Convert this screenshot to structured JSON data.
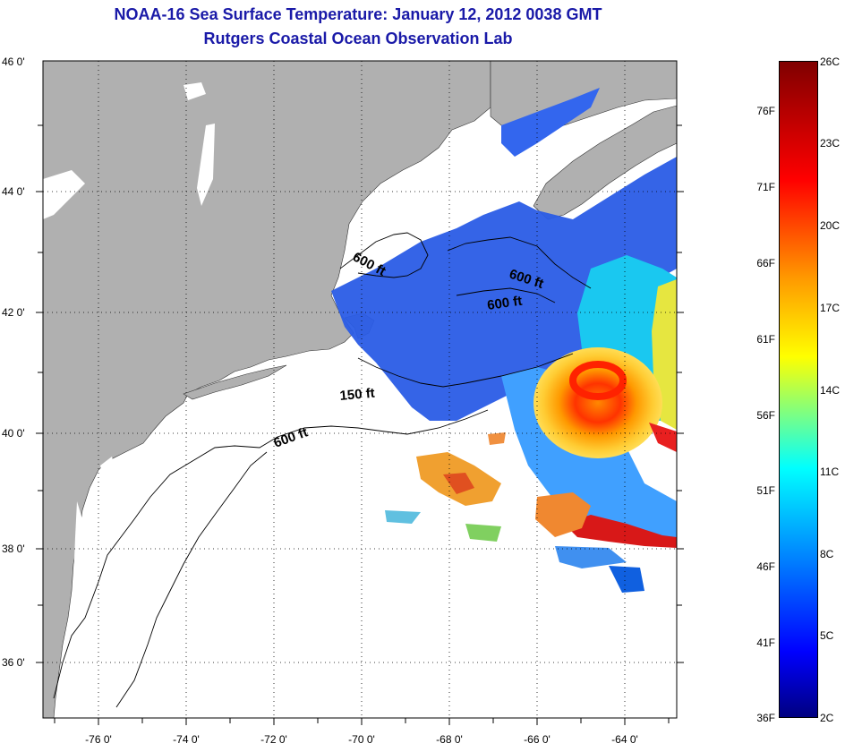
{
  "header": {
    "title": "NOAA-16 Sea Surface Temperature:  January 12, 2012 0038 GMT",
    "subtitle": "Rutgers Coastal Ocean Observation Lab"
  },
  "map": {
    "lat_labels": [
      "46 0'",
      "44 0'",
      "42 0'",
      "40 0'",
      "38 0'",
      "36 0'"
    ],
    "lon_labels": [
      "-76 0'",
      "-74 0'",
      "-72 0'",
      "-70 0'",
      "-68 0'",
      "-66 0'",
      "-64 0'"
    ],
    "contour_labels": [
      "600 ft",
      "600 ft",
      "600 ft",
      "150 ft",
      "600 ft"
    ],
    "colors": {
      "land": "#b0b0b0",
      "water": "#ffffff",
      "grid": "#000000"
    }
  },
  "colorbar": {
    "celsius": [
      "26C",
      "23C",
      "20C",
      "17C",
      "14C",
      "11C",
      "8C",
      "5C",
      "2C"
    ],
    "fahrenheit": [
      "76F",
      "71F",
      "66F",
      "61F",
      "56F",
      "51F",
      "46F",
      "41F",
      "36F"
    ]
  }
}
